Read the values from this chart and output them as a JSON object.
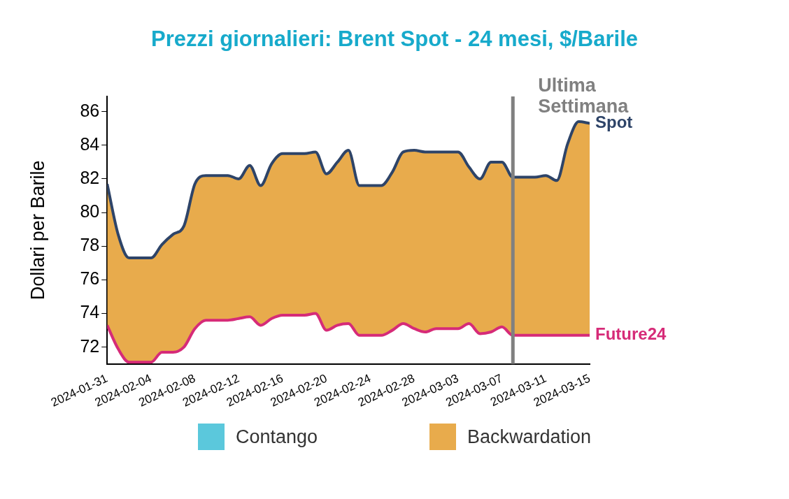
{
  "chart_data": {
    "type": "line",
    "title": "Prezzi giornalieri: Brent Spot - 24 mesi, $/Barile",
    "ylabel": "Dollari per Barile",
    "x": [
      "2024-01-31",
      "2024-02-01",
      "2024-02-02",
      "2024-02-03",
      "2024-02-04",
      "2024-02-05",
      "2024-02-06",
      "2024-02-07",
      "2024-02-08",
      "2024-02-09",
      "2024-02-10",
      "2024-02-11",
      "2024-02-12",
      "2024-02-13",
      "2024-02-14",
      "2024-02-15",
      "2024-02-16",
      "2024-02-17",
      "2024-02-18",
      "2024-02-19",
      "2024-02-20",
      "2024-02-21",
      "2024-02-22",
      "2024-02-23",
      "2024-02-24",
      "2024-02-25",
      "2024-02-26",
      "2024-02-27",
      "2024-02-28",
      "2024-02-29",
      "2024-03-01",
      "2024-03-02",
      "2024-03-03",
      "2024-03-04",
      "2024-03-05",
      "2024-03-06",
      "2024-03-07",
      "2024-03-08",
      "2024-03-09",
      "2024-03-10",
      "2024-03-11",
      "2024-03-12",
      "2024-03-13",
      "2024-03-14",
      "2024-03-15"
    ],
    "series": [
      {
        "name": "Spot",
        "type": "line",
        "color": "#2e4468",
        "values": [
          81.7,
          78.7,
          77.3,
          77.3,
          77.3,
          78.1,
          78.7,
          79.2,
          81.7,
          82.2,
          82.2,
          82.2,
          82.0,
          82.8,
          81.6,
          82.9,
          83.5,
          83.5,
          83.5,
          83.6,
          82.3,
          83.0,
          83.7,
          81.6,
          81.6,
          81.6,
          82.4,
          83.6,
          83.7,
          83.6,
          83.6,
          83.6,
          83.6,
          82.7,
          82.0,
          83.0,
          83.0,
          82.1,
          82.1,
          82.1,
          82.2,
          81.9,
          84.1,
          85.4,
          85.3
        ]
      },
      {
        "name": "Future24",
        "type": "line",
        "color": "#d62b78",
        "values": [
          73.3,
          71.9,
          71.1,
          71.1,
          71.1,
          71.7,
          71.7,
          72.0,
          73.1,
          73.6,
          73.6,
          73.6,
          73.7,
          73.8,
          73.3,
          73.7,
          73.9,
          73.9,
          73.9,
          74.0,
          73.0,
          73.3,
          73.4,
          72.7,
          72.7,
          72.7,
          73.0,
          73.4,
          73.1,
          72.9,
          73.1,
          73.1,
          73.1,
          73.4,
          72.8,
          72.9,
          73.2,
          72.7,
          72.7,
          72.7,
          72.7,
          72.7,
          72.7,
          72.7,
          72.7
        ]
      },
      {
        "name": "Contango",
        "type": "area",
        "color": "#5bc8dc",
        "values": [
          null,
          null,
          null,
          null,
          null,
          null,
          null,
          null,
          null,
          null,
          null,
          null,
          null,
          null,
          null,
          null,
          null,
          null,
          null,
          null,
          null,
          null,
          null,
          null,
          null,
          null,
          null,
          null,
          null,
          null,
          null,
          null,
          null,
          null,
          null,
          null,
          null,
          null,
          null,
          null,
          null,
          null,
          null,
          null,
          null
        ]
      },
      {
        "name": "Backwardation",
        "type": "area",
        "color": "#e8ab4c",
        "values": [
          81.7,
          78.7,
          77.3,
          77.3,
          77.3,
          78.1,
          78.7,
          79.2,
          81.7,
          82.2,
          82.2,
          82.2,
          82.0,
          82.8,
          81.6,
          82.9,
          83.5,
          83.5,
          83.5,
          83.6,
          82.3,
          83.0,
          83.7,
          81.6,
          81.6,
          81.6,
          82.4,
          83.6,
          83.7,
          83.6,
          83.6,
          83.6,
          83.6,
          82.7,
          82.0,
          83.0,
          83.0,
          82.1,
          82.1,
          82.1,
          82.2,
          81.9,
          84.1,
          85.4,
          85.3
        ]
      }
    ],
    "xlim": [
      "2024-01-31",
      "2024-03-15"
    ],
    "xticks": [
      "2024-01-31",
      "2024-02-04",
      "2024-02-08",
      "2024-02-12",
      "2024-02-16",
      "2024-02-20",
      "2024-02-24",
      "2024-02-28",
      "2024-03-03",
      "2024-03-07",
      "2024-03-11",
      "2024-03-15"
    ],
    "ylim": [
      71,
      86.9
    ],
    "yticks": [
      72,
      74,
      76,
      78,
      80,
      82,
      84,
      86
    ],
    "ref_lines": [
      {
        "axis": "x",
        "value": "2024-03-08",
        "label": "Ultima Settimana",
        "color": "#808080"
      }
    ],
    "grid": false,
    "legend": "bottom",
    "marker": "none",
    "line_style": "solid"
  }
}
